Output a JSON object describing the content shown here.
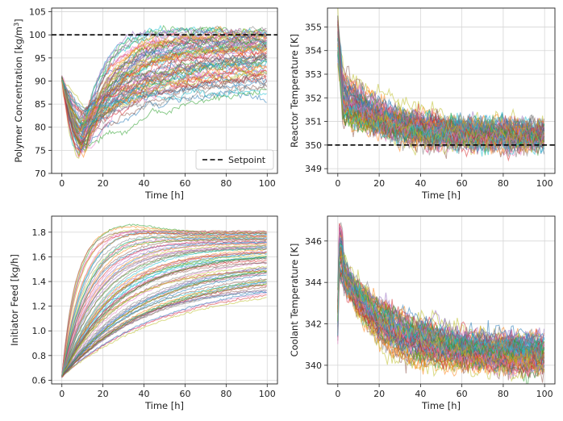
{
  "chart_data": [
    {
      "id": "conc",
      "type": "line",
      "title": "",
      "xlabel": "Time [h]",
      "ylabel": "Polymer Concentration [kg/m",
      "ylabel_sup": "3",
      "ylabel_end": "]",
      "xlim": [
        -5,
        105
      ],
      "ylim": [
        70,
        105.8
      ],
      "xticks": [
        0,
        20,
        40,
        60,
        80,
        100
      ],
      "yticks": [
        70,
        75,
        80,
        85,
        90,
        95,
        100,
        105
      ],
      "grid": true,
      "setpoint": 100,
      "legend": {
        "label": "Setpoint",
        "placement": "lower right"
      },
      "series_summary": {
        "count": 80,
        "start_value": 90.5,
        "dip_time_range": [
          8,
          13
        ],
        "dip_value_range": [
          73,
          86
        ],
        "end_value_range": [
          88,
          101
        ],
        "noise": 0.6
      }
    },
    {
      "id": "reactor",
      "type": "line",
      "title": "",
      "xlabel": "Time [h]",
      "ylabel": "Reactor Temperature [K]",
      "xlim": [
        -5,
        105
      ],
      "ylim": [
        348.8,
        355.8
      ],
      "xticks": [
        0,
        20,
        40,
        60,
        80,
        100
      ],
      "yticks": [
        349,
        350,
        351,
        352,
        353,
        354,
        355
      ],
      "grid": true,
      "setpoint": 350,
      "series_summary": {
        "count": 80,
        "start_value_range": [
          353.5,
          355.6
        ],
        "end_value_range": [
          349.9,
          350.7
        ],
        "noise": 0.28
      }
    },
    {
      "id": "initiator",
      "type": "line",
      "title": "",
      "xlabel": "Time [h]",
      "ylabel": "Initiator Feed [kg/h]",
      "xlim": [
        -5,
        105
      ],
      "ylim": [
        0.57,
        1.93
      ],
      "xticks": [
        0,
        20,
        40,
        60,
        80,
        100
      ],
      "yticks": [
        0.6,
        0.8,
        1.0,
        1.2,
        1.4,
        1.6,
        1.8
      ],
      "grid": true,
      "series_summary": {
        "count": 80,
        "start_value": 0.63,
        "end_value_range": [
          1.35,
          1.81
        ],
        "peak_max": 1.89,
        "noise": 0.004
      }
    },
    {
      "id": "coolant",
      "type": "line",
      "title": "",
      "xlabel": "Time [h]",
      "ylabel": "Coolant Temperature [K]",
      "xlim": [
        -5,
        105
      ],
      "ylim": [
        339.1,
        347.2
      ],
      "xticks": [
        0,
        20,
        40,
        60,
        80,
        100
      ],
      "yticks": [
        340,
        342,
        344,
        346
      ],
      "grid": true,
      "series_summary": {
        "count": 80,
        "spike_value_range": [
          344.5,
          347.0
        ],
        "end_value_range": [
          339.8,
          341.2
        ],
        "noise": 0.35
      }
    }
  ],
  "palette": [
    "#1f77b4",
    "#ff7f0e",
    "#2ca02c",
    "#d62728",
    "#9467bd",
    "#8c564b",
    "#e377c2",
    "#7f7f7f",
    "#bcbd22",
    "#17becf"
  ],
  "setpoint_color": "#000000"
}
